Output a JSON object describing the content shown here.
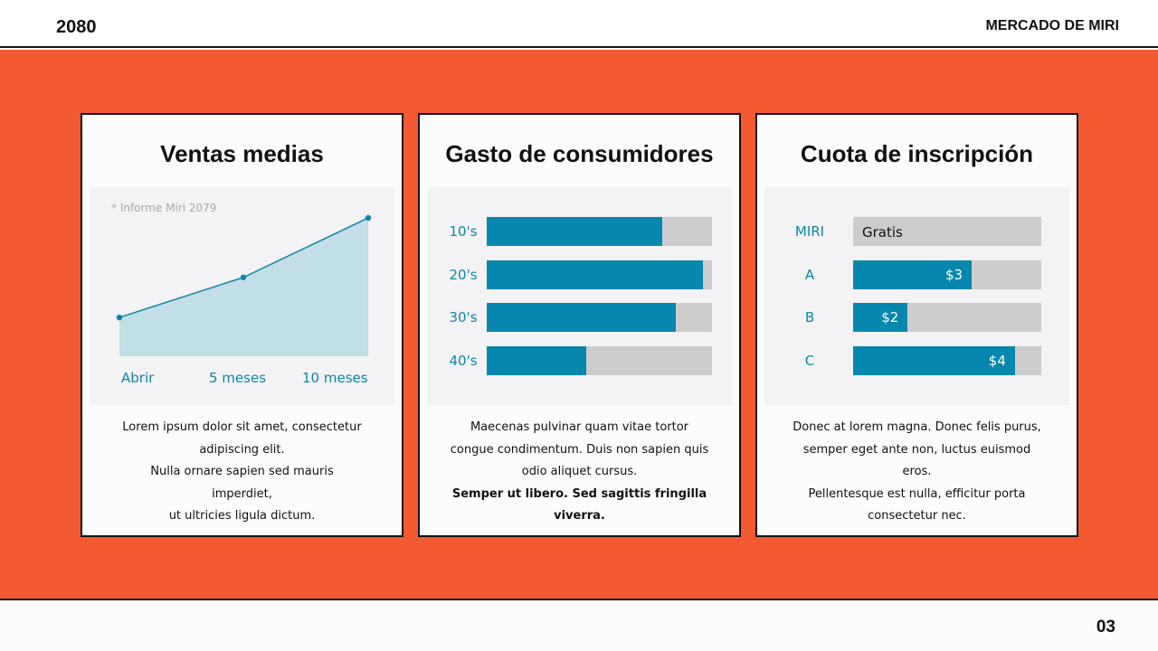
{
  "header": {
    "year": "2080",
    "brand": "MERCADO DE MIRI"
  },
  "footer": {
    "page": "03"
  },
  "colors": {
    "accent": "#f35a31",
    "bar": "#0787ad",
    "track": "#cdcccd",
    "area": "#c2dee6"
  },
  "cards": [
    {
      "title": "Ventas medias",
      "desc": [
        "Lorem ipsum dolor sit amet, consectetur",
        "adipiscing elit.",
        "Nulla ornare sapien sed mauris",
        "imperdiet,",
        "ut ultricies ligula dictum."
      ]
    },
    {
      "title": "Gasto de consumidores",
      "desc": [
        "Maecenas pulvinar quam vitae tortor",
        "congue condimentum. Duis non sapien quis",
        "odio aliquet cursus."
      ],
      "desc_bold": [
        "Semper ut libero. Sed sagittis fringilla",
        "viverra."
      ]
    },
    {
      "title": "Cuota de inscripción",
      "desc": [
        "Donec at lorem magna. Donec felis purus,",
        "semper eget ante non, luctus euismod",
        "eros.",
        "Pellentesque est nulla, efficitur porta",
        "consectetur nec."
      ]
    }
  ],
  "chart_data": [
    {
      "type": "area",
      "note": "* Informe Miri 2079",
      "categories": [
        "Abrir",
        "5 meses",
        "10 meses"
      ],
      "values": [
        0.28,
        0.57,
        1.0
      ],
      "ylim": [
        0,
        1
      ],
      "grid": false
    },
    {
      "type": "bar",
      "orientation": "horizontal",
      "categories": [
        "10's",
        "20's",
        "30's",
        "40's"
      ],
      "values": [
        0.78,
        0.96,
        0.84,
        0.44
      ],
      "xlim": [
        0,
        1
      ]
    },
    {
      "type": "bar",
      "orientation": "horizontal",
      "categories": [
        "MIRI",
        "A",
        "B",
        "C"
      ],
      "labels": [
        "Gratis",
        "$3",
        "$2",
        "$4"
      ],
      "values": [
        0,
        0.63,
        0.29,
        0.86
      ],
      "xlim": [
        0,
        1
      ]
    }
  ]
}
